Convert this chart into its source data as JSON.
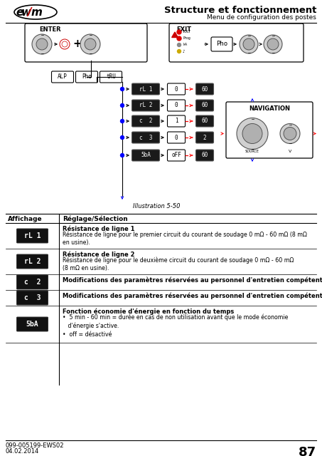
{
  "title": "Structure et fonctionnement",
  "subtitle": "Menu de configuration des postes",
  "page_number": "87",
  "doc_number": "099-005199-EWS02",
  "doc_date": "04.02.2014",
  "illustration_label": "Illustration 5-50",
  "table_header_col1": "Affichage",
  "table_header_col2": "Réglage/Sélection",
  "table_rows": [
    {
      "icon": "rL 1",
      "title": "Résistance de ligne 1",
      "text": "Résistance de ligne pour le premier circuit du courant de soudage 0 mΩ - 60 mΩ (8 mΩ\nen usine)."
    },
    {
      "icon": "rL 2",
      "title": "Résistance de ligne 2",
      "text": "Résistance de ligne pour le deuxième circuit du courant de soudage 0 mΩ - 60 mΩ\n(8 mΩ en usine)."
    },
    {
      "icon": "c  2",
      "title": "Modifications des paramètres réservées au personnel d'entretien compétent !",
      "text": ""
    },
    {
      "icon": "c  3",
      "title": "Modifications des paramètres réservées au personnel d'entretien compétent !",
      "text": ""
    },
    {
      "icon": "5bA",
      "title": "Fonction économie d'énergie en fonction du temps",
      "text": "•  5 min - 60 min = durée en cas de non utilisation avant que le mode économie\n   d'énergie s'active.\n•  off = désactivé"
    }
  ],
  "bg_color": "#ffffff",
  "menu_items": [
    {
      "label": "rL 1",
      "min": "0",
      "max": "60"
    },
    {
      "label": "rL 2",
      "min": "0",
      "max": "60"
    },
    {
      "label": "c  2",
      "min": "1",
      "max": "60"
    },
    {
      "label": "c  3",
      "min": "0",
      "max": "2"
    },
    {
      "label": "5bA",
      "min": "oFF",
      "max": "60"
    }
  ]
}
